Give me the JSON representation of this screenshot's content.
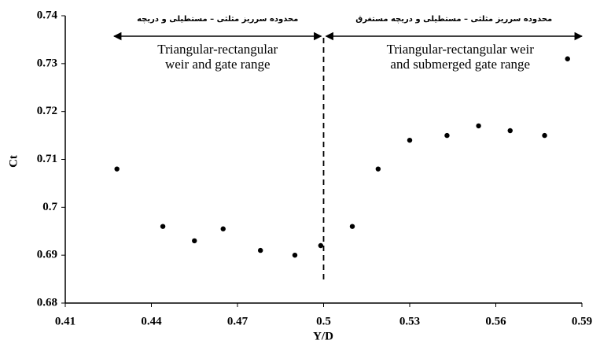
{
  "chart_data": {
    "type": "scatter",
    "x_label": "Y/D",
    "y_label": "Ct",
    "x": [
      0.428,
      0.444,
      0.455,
      0.465,
      0.478,
      0.49,
      0.499,
      0.51,
      0.519,
      0.53,
      0.543,
      0.554,
      0.565,
      0.577,
      0.585
    ],
    "values": [
      0.708,
      0.696,
      0.693,
      0.6955,
      0.691,
      0.69,
      0.692,
      0.696,
      0.708,
      0.714,
      0.715,
      0.717,
      0.716,
      0.715,
      0.731
    ],
    "color": "#000000",
    "xlim": [
      0.41,
      0.59
    ],
    "xticks": [
      0.41,
      0.44,
      0.47,
      0.5,
      0.53,
      0.56,
      0.59
    ],
    "ylim": [
      0.68,
      0.74
    ],
    "yticks": [
      0.68,
      0.69,
      0.7,
      0.71,
      0.72,
      0.73,
      0.74
    ],
    "grid": false,
    "divider_x": 0.5,
    "regions": [
      {
        "label_fa": "محدوده سرریز مثلثی – مستطیلی و دریچه",
        "label_en": [
          "Triangular-rectangular",
          "weir and gate range"
        ]
      },
      {
        "label_fa": "محدوده سرریز مثلثی – مستطیلی و دریچه مستغرق",
        "label_en": [
          "Triangular-rectangular weir",
          "and submerged gate range"
        ]
      }
    ]
  }
}
